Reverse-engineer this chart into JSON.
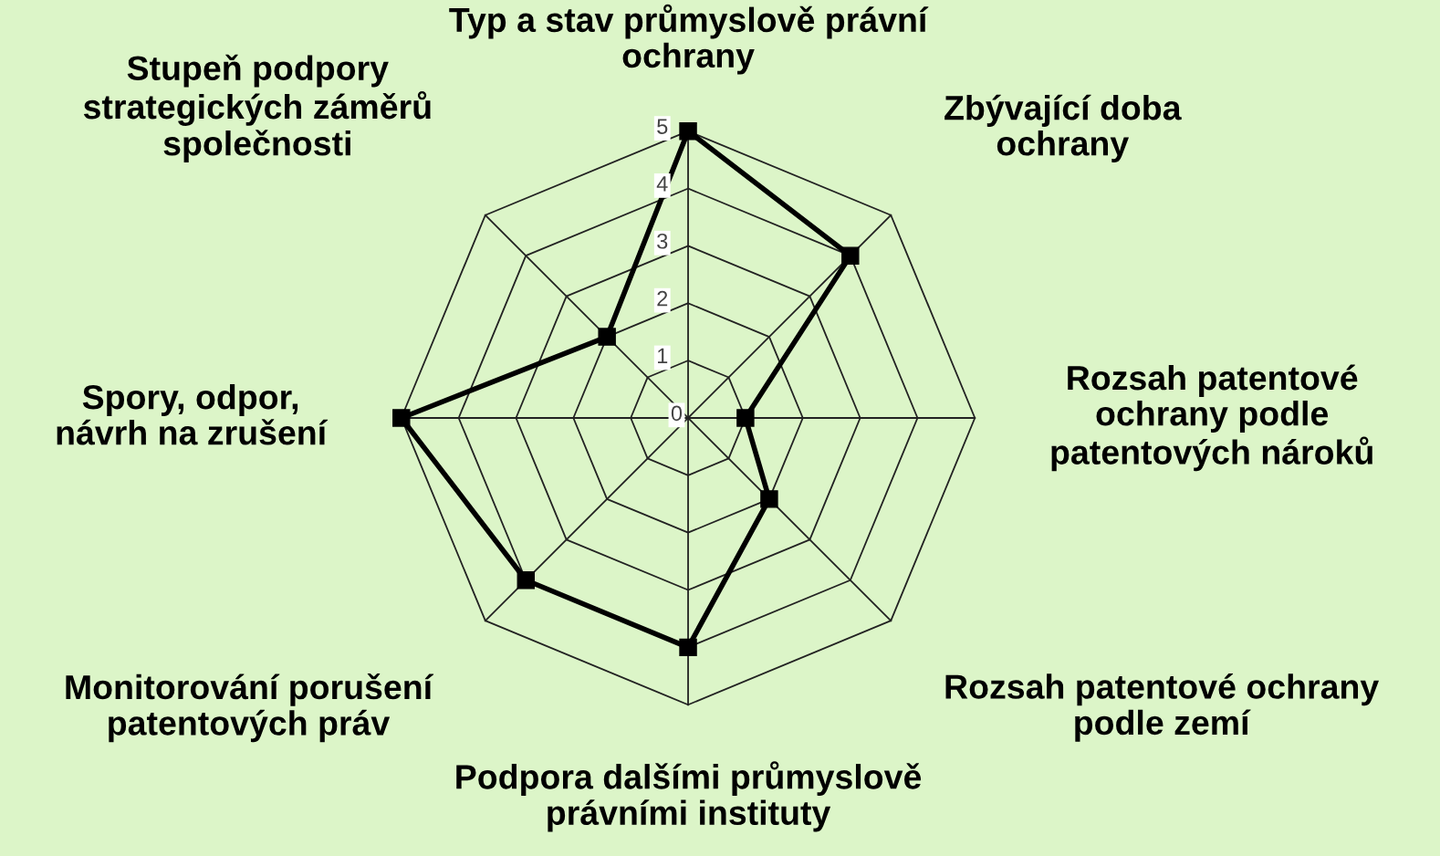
{
  "chart_data": {
    "type": "radar",
    "categories": [
      "Typ a stav průmyslově právní\nochrany",
      "Zbývající doba\nochrany",
      "Rozsah patentové\nochrany podle\npatentových nároků",
      "Rozsah patentové ochrany\npodle zemí",
      "Podpora dalšími průmyslově\nprávními instituty",
      "Monitorování porušení\npatentových práv",
      "Spory, odpor,\nnávrh na zrušení",
      "Stupeň podpory\nstrategických záměrů\nspolečnosti"
    ],
    "series": [
      {
        "color": "#000000",
        "values": [
          5,
          4,
          1,
          2,
          4,
          4,
          5,
          2
        ]
      }
    ],
    "ylim": [
      0,
      5
    ],
    "yticks": [
      0,
      1,
      2,
      3,
      4,
      5
    ],
    "grid": true,
    "marker": "square",
    "line_style": "solid"
  }
}
